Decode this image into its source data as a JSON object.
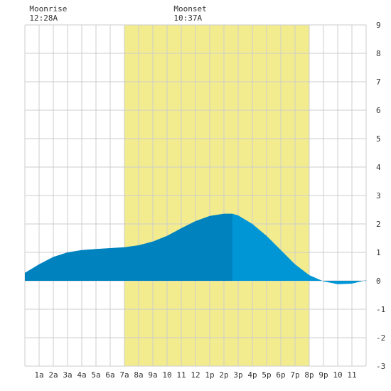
{
  "chart_data": {
    "type": "area",
    "title": "",
    "xlabel": "",
    "ylabel": "",
    "x_range": [
      0,
      24
    ],
    "ylim": [
      -3,
      9
    ],
    "y_ticks": [
      -3,
      -2,
      -1,
      0,
      1,
      2,
      3,
      4,
      5,
      6,
      7,
      8,
      9
    ],
    "x_tick_labels": [
      "1a",
      "2a",
      "3a",
      "4a",
      "5a",
      "6a",
      "7a",
      "8a",
      "9a",
      "10",
      "11",
      "12",
      "1p",
      "2p",
      "3p",
      "4p",
      "5p",
      "6p",
      "7p",
      "8p",
      "9p",
      "10",
      "11"
    ],
    "grid": true,
    "daylight": {
      "start_hour": 7.0,
      "end_hour": 20.0,
      "color": "#f3ec8e"
    },
    "moonrise": {
      "label": "Moonrise",
      "time": "12:28A",
      "hour": 0.47
    },
    "moonset": {
      "label": "Moonset",
      "time": "10:37A",
      "hour": 10.62
    },
    "tide_change_hour": 14.6,
    "colors": {
      "falling": "#0082be",
      "rising": "#0096d6",
      "grid": "#cccccc"
    },
    "series": [
      {
        "x": [
          0,
          1,
          2,
          3,
          4,
          5,
          6,
          7,
          8,
          9,
          10,
          11,
          12,
          13,
          14,
          14.6,
          15,
          16,
          17,
          18,
          19,
          20,
          21,
          22,
          23,
          24
        ],
        "values": [
          0.28,
          0.58,
          0.84,
          1.0,
          1.08,
          1.12,
          1.15,
          1.18,
          1.25,
          1.38,
          1.58,
          1.85,
          2.1,
          2.28,
          2.36,
          2.36,
          2.3,
          2.0,
          1.58,
          1.08,
          0.58,
          0.2,
          -0.02,
          -0.12,
          -0.1,
          0.02
        ]
      }
    ]
  }
}
